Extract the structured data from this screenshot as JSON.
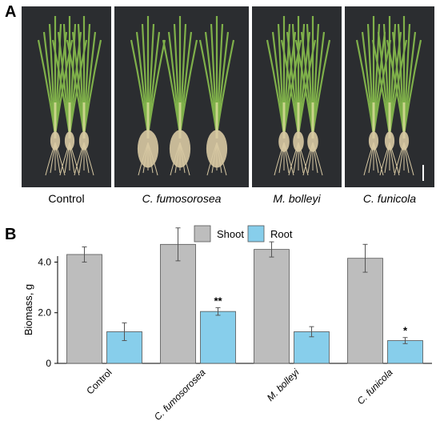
{
  "panels": {
    "a_label": "A",
    "b_label": "B"
  },
  "photos": [
    {
      "caption": "Control"
    },
    {
      "caption": "C. fumosorosea"
    },
    {
      "caption": "M. bolleyi"
    },
    {
      "caption": "C. funicola"
    }
  ],
  "colors": {
    "shoot": "#bdbdbd",
    "root": "#87ceeb",
    "photo_bg": "#2b2d30",
    "leaf": "#7fb04a",
    "root_tissue": "#d8c9a3"
  },
  "chart_data": {
    "type": "bar",
    "categories": [
      "Control",
      "C. fumosorosea",
      "M. bolleyi",
      "C. funicola"
    ],
    "series": [
      {
        "name": "Shoot",
        "values": [
          4.3,
          4.7,
          4.5,
          4.15
        ],
        "errors": [
          0.3,
          0.65,
          0.3,
          0.55
        ],
        "color": "#bdbdbd",
        "annotations": [
          "",
          "",
          "",
          ""
        ]
      },
      {
        "name": "Root",
        "values": [
          1.25,
          2.05,
          1.25,
          0.9
        ],
        "errors": [
          0.35,
          0.15,
          0.2,
          0.12
        ],
        "color": "#87ceeb",
        "annotations": [
          "",
          "**",
          "",
          "*"
        ]
      }
    ],
    "ylabel": "Biomass, g",
    "yticks": [
      "0",
      "2.0",
      "4.0"
    ],
    "ytick_values": [
      0,
      2,
      4
    ],
    "ylim": [
      0,
      5.5
    ],
    "legend_position": "top-center",
    "grid": false,
    "italic_categories": [
      false,
      true,
      true,
      true
    ]
  }
}
